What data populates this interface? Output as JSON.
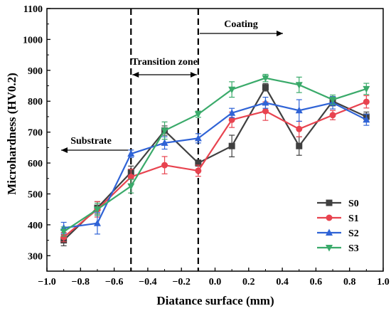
{
  "chart_data": {
    "type": "line",
    "xlabel": "Diatance surface (mm)",
    "ylabel": "Microhardness (HV0.2)",
    "xlim": [
      -1.0,
      1.0
    ],
    "ylim": [
      250,
      1100
    ],
    "xticks": [
      "-1.0",
      "-0.8",
      "-0.6",
      "-0.4",
      "-0.2",
      "0.0",
      "0.2",
      "0.4",
      "0.6",
      "0.8",
      "1.0"
    ],
    "yticks": [
      "300",
      "400",
      "500",
      "600",
      "700",
      "800",
      "900",
      "1000",
      "1100"
    ],
    "x": [
      -0.9,
      -0.7,
      -0.5,
      -0.3,
      -0.1,
      0.1,
      0.3,
      0.5,
      0.7,
      0.9
    ],
    "series": [
      {
        "name": "S0",
        "color": "#404040",
        "marker": "square",
        "values": [
          350,
          455,
          570,
          705,
          600,
          655,
          845,
          655,
          800,
          750
        ],
        "errors": [
          18,
          20,
          20,
          15,
          10,
          35,
          12,
          30,
          15,
          15
        ]
      },
      {
        "name": "S1",
        "color": "#e8434f",
        "marker": "circle",
        "values": [
          360,
          450,
          555,
          593,
          575,
          740,
          768,
          710,
          755,
          798
        ],
        "errors": [
          15,
          25,
          25,
          28,
          18,
          25,
          30,
          25,
          15,
          20
        ]
      },
      {
        "name": "S2",
        "color": "#2f63d6",
        "marker": "triangle-up",
        "values": [
          390,
          405,
          630,
          665,
          680,
          762,
          795,
          770,
          795,
          740
        ],
        "errors": [
          18,
          35,
          12,
          20,
          15,
          15,
          18,
          35,
          20,
          18
        ]
      },
      {
        "name": "S3",
        "color": "#3aaa6a",
        "marker": "triangle-down",
        "values": [
          378,
          450,
          525,
          705,
          758,
          838,
          875,
          853,
          805,
          840
        ],
        "errors": [
          15,
          20,
          22,
          28,
          10,
          25,
          12,
          25,
          15,
          18
        ]
      }
    ],
    "vlines": [
      -0.5,
      -0.1
    ],
    "annotations": {
      "substrate": "Substrate",
      "transition": "Transition zone",
      "coating": "Coating"
    },
    "legend": "bottom-right",
    "grid": false
  }
}
